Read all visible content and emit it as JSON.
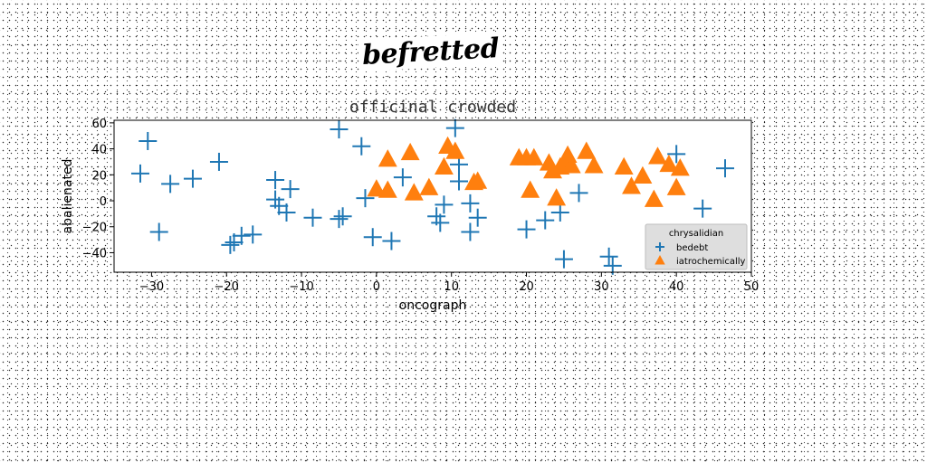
{
  "figure_title": "befretted",
  "colors": {
    "series_1": "#1f77b4",
    "series_2": "#ff7f0e"
  },
  "chart_data": {
    "type": "scatter",
    "title": "officinal crowded",
    "xlabel": "oncograph",
    "ylabel": "abalienated",
    "xlim": [
      -35,
      50
    ],
    "ylim": [
      -55,
      62
    ],
    "xticks": [
      -30,
      -20,
      -10,
      0,
      10,
      20,
      30,
      40,
      50
    ],
    "yticks": [
      -40,
      -20,
      0,
      20,
      40,
      60
    ],
    "grid": false,
    "legend": {
      "title": "chrysalidian",
      "placement": "lower-right"
    },
    "series": [
      {
        "name": "bedebt",
        "marker": "plus",
        "x": [
          -31.5,
          -30.5,
          -29,
          -27.5,
          -24.5,
          -21,
          -19.5,
          -19,
          -18,
          -16.5,
          -13.5,
          -13.5,
          -13,
          -12,
          -11.5,
          -8.5,
          -5,
          -5,
          -4.5,
          -2,
          -1.5,
          -0.5,
          2,
          3.5,
          8,
          8.5,
          9,
          10.5,
          11,
          11,
          12.5,
          12.5,
          13.5,
          20,
          22.5,
          24.5,
          25,
          27,
          31,
          31.5,
          40,
          43.5,
          46.5
        ],
        "y": [
          21,
          46,
          -24,
          13,
          17,
          30,
          -34,
          -32,
          -27,
          -26,
          16,
          1,
          -4,
          -9,
          9,
          -13,
          55,
          -14,
          -12,
          42,
          2,
          -28,
          -31,
          18,
          -12,
          -17,
          -3,
          56,
          15,
          28,
          -2,
          -24,
          -13,
          -22,
          -15,
          -9,
          -45,
          6,
          -43,
          -50,
          36,
          -6,
          25
        ]
      },
      {
        "name": "iatrochemically",
        "marker": "triangle",
        "x": [
          0,
          1.5,
          1.5,
          4.5,
          5,
          7,
          9,
          9.5,
          10.5,
          13,
          13.5,
          19,
          20,
          20.5,
          21,
          23,
          23.5,
          24,
          24.5,
          25,
          25.5,
          26,
          28,
          29,
          33,
          34,
          35.5,
          37,
          37.5,
          39,
          40,
          40.5
        ],
        "y": [
          9,
          8,
          32,
          37,
          6,
          10,
          26,
          42,
          38,
          14,
          15,
          33,
          33,
          8,
          33,
          29,
          23,
          2,
          26,
          28,
          35,
          27,
          38,
          27,
          26,
          11,
          19,
          1,
          34,
          28,
          10,
          25
        ]
      }
    ]
  }
}
